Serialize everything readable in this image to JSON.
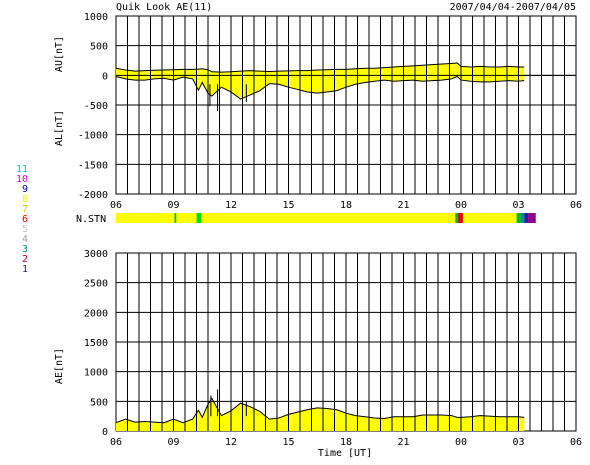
{
  "header": {
    "title": "Quik Look AE(11)",
    "date_range": "2007/04/04-2007/04/05"
  },
  "colors": {
    "fill": "#ffff00",
    "trace": "#000000",
    "grid": "#000000"
  },
  "station_legend": [
    {
      "n": "11",
      "color": "#00c8c8"
    },
    {
      "n": "10",
      "color": "#e000e0"
    },
    {
      "n": "9",
      "color": "#0000c8"
    },
    {
      "n": "8",
      "color": "#f0f000"
    },
    {
      "n": "7",
      "color": "#c8c800"
    },
    {
      "n": "6",
      "color": "#e00000"
    },
    {
      "n": "5",
      "color": "#c8c8c8"
    },
    {
      "n": "4",
      "color": "#a0a0a0"
    },
    {
      "n": "3",
      "color": "#009090"
    },
    {
      "n": "2",
      "color": "#b00060"
    },
    {
      "n": "1",
      "color": "#2020a0"
    }
  ],
  "chart_data": [
    {
      "type": "area",
      "panel": "AU/AL",
      "ylabel_top": "AU[nT]",
      "ylabel_bottom": "AL[nT]",
      "ylim": [
        -2000,
        1000
      ],
      "yticks": [
        "1000",
        "500",
        "0",
        "-500",
        "-1000",
        "-1500",
        "-2000"
      ],
      "xlim_hours": [
        6,
        30
      ],
      "xticks": [
        "06",
        "09",
        "12",
        "15",
        "18",
        "21",
        "00",
        "03",
        "06"
      ],
      "x_hours": [
        6.0,
        6.5,
        7.0,
        7.5,
        8.0,
        8.5,
        9.0,
        9.5,
        10.0,
        10.3,
        10.5,
        10.8,
        11.0,
        11.5,
        12.0,
        12.5,
        13.0,
        13.5,
        14.0,
        14.5,
        15.0,
        15.5,
        16.0,
        16.5,
        17.0,
        17.5,
        18.0,
        18.5,
        19.0,
        19.5,
        20.0,
        20.5,
        21.0,
        21.5,
        22.0,
        22.5,
        23.0,
        23.5,
        23.8,
        24.0,
        24.5,
        25.0,
        25.5,
        26.0,
        26.5,
        27.0,
        27.3
      ],
      "au": [
        120,
        90,
        70,
        80,
        85,
        90,
        95,
        100,
        100,
        105,
        110,
        95,
        60,
        55,
        60,
        70,
        80,
        70,
        65,
        70,
        75,
        80,
        80,
        90,
        95,
        100,
        100,
        110,
        120,
        120,
        130,
        140,
        150,
        160,
        170,
        180,
        190,
        200,
        210,
        150,
        140,
        150,
        140,
        140,
        150,
        140,
        140
      ],
      "al": [
        -20,
        -60,
        -80,
        -80,
        -60,
        -50,
        -80,
        -30,
        -60,
        -250,
        -120,
        -300,
        -350,
        -200,
        -280,
        -400,
        -330,
        -260,
        -140,
        -150,
        -200,
        -240,
        -280,
        -300,
        -280,
        -260,
        -200,
        -150,
        -120,
        -100,
        -80,
        -100,
        -90,
        -80,
        -100,
        -90,
        -80,
        -60,
        -20,
        -80,
        -100,
        -110,
        -110,
        -100,
        -90,
        -100,
        -90
      ],
      "spikes": [
        {
          "x": 10.9,
          "y": -520
        },
        {
          "x": 11.3,
          "y": -600
        },
        {
          "x": 12.8,
          "y": -450
        }
      ]
    },
    {
      "type": "bar",
      "panel": "N.STN",
      "label": "N.STN",
      "xlim_hours": [
        6,
        30
      ],
      "segments": [
        {
          "from": 6.0,
          "to": 9.05,
          "color": "#ffff00"
        },
        {
          "from": 9.05,
          "to": 9.15,
          "color": "#00c000"
        },
        {
          "from": 9.15,
          "to": 10.2,
          "color": "#ffff00"
        },
        {
          "from": 10.2,
          "to": 10.45,
          "color": "#00e000"
        },
        {
          "from": 10.45,
          "to": 23.7,
          "color": "#ffff00"
        },
        {
          "from": 23.7,
          "to": 23.85,
          "color": "#00c000"
        },
        {
          "from": 23.85,
          "to": 24.1,
          "color": "#e00000"
        },
        {
          "from": 24.1,
          "to": 26.9,
          "color": "#ffff00"
        },
        {
          "from": 26.9,
          "to": 27.1,
          "color": "#00c000"
        },
        {
          "from": 27.1,
          "to": 27.3,
          "color": "#009090"
        },
        {
          "from": 27.3,
          "to": 27.5,
          "color": "#2020a0"
        },
        {
          "from": 27.5,
          "to": 27.9,
          "color": "#900090"
        }
      ]
    },
    {
      "type": "area",
      "panel": "AE",
      "ylabel": "AE[nT]",
      "xlabel": "Time [UT]",
      "ylim": [
        0,
        3000
      ],
      "yticks": [
        "3000",
        "2500",
        "2000",
        "1500",
        "1000",
        "500",
        "0"
      ],
      "xlim_hours": [
        6,
        30
      ],
      "xticks": [
        "06",
        "09",
        "12",
        "15",
        "18",
        "21",
        "00",
        "03",
        "06"
      ],
      "x_hours": [
        6.0,
        6.5,
        7.0,
        7.5,
        8.0,
        8.5,
        9.0,
        9.5,
        10.0,
        10.3,
        10.5,
        10.8,
        11.0,
        11.5,
        12.0,
        12.5,
        13.0,
        13.5,
        14.0,
        14.5,
        15.0,
        15.5,
        16.0,
        16.5,
        17.0,
        17.5,
        18.0,
        18.5,
        19.0,
        19.5,
        20.0,
        20.5,
        21.0,
        21.5,
        22.0,
        22.5,
        23.0,
        23.5,
        23.8,
        24.0,
        24.5,
        25.0,
        25.5,
        26.0,
        26.5,
        27.0,
        27.3
      ],
      "ae": [
        140,
        200,
        150,
        160,
        150,
        140,
        200,
        140,
        200,
        350,
        230,
        450,
        550,
        260,
        340,
        470,
        410,
        330,
        200,
        220,
        280,
        320,
        360,
        390,
        380,
        360,
        300,
        260,
        240,
        220,
        210,
        240,
        240,
        240,
        270,
        270,
        270,
        260,
        230,
        230,
        240,
        260,
        250,
        240,
        240,
        240,
        230
      ],
      "spikes": [
        {
          "x": 10.95,
          "y": 600
        },
        {
          "x": 11.3,
          "y": 700
        },
        {
          "x": 12.8,
          "y": 500
        }
      ]
    }
  ]
}
